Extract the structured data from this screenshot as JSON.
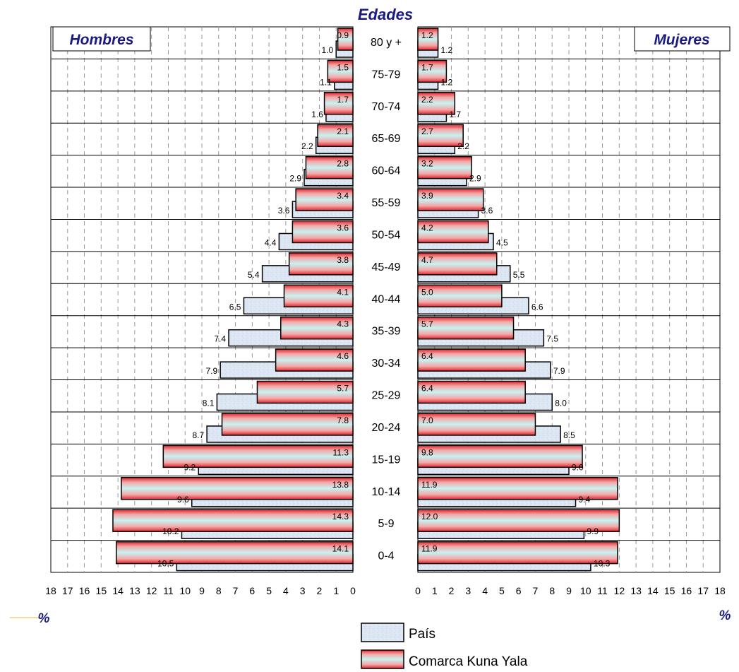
{
  "chart_data": {
    "type": "bar",
    "subtype": "population-pyramid",
    "title": "Edades",
    "left_label": "Hombres",
    "right_label": "Mujeres",
    "xlabel_left": "%",
    "xlabel_right": "%",
    "xlim": [
      0,
      18
    ],
    "x_ticks_left": [
      "18",
      "17",
      "16",
      "15",
      "14",
      "13",
      "12",
      "11",
      "10",
      "9",
      "8",
      "7",
      "6",
      "5",
      "4",
      "3",
      "2",
      "1",
      "0"
    ],
    "x_ticks_right": [
      "0",
      "1",
      "2",
      "3",
      "4",
      "5",
      "6",
      "7",
      "8",
      "9",
      "10",
      "11",
      "12",
      "13",
      "14",
      "15",
      "16",
      "17",
      "18"
    ],
    "categories": [
      "80 y +",
      "75-79",
      "70-74",
      "65-69",
      "60-64",
      "55-59",
      "50-54",
      "45-49",
      "40-44",
      "35-39",
      "30-34",
      "25-29",
      "20-24",
      "15-19",
      "10-14",
      "5-9",
      "0-4"
    ],
    "series": [
      {
        "name": "País",
        "color": "#dce6f4",
        "hombres": [
          1.0,
          1.1,
          1.6,
          2.2,
          2.9,
          3.6,
          4.4,
          5.4,
          6.5,
          7.4,
          7.9,
          8.1,
          8.7,
          9.2,
          9.6,
          10.2,
          10.5
        ],
        "mujeres": [
          1.2,
          1.2,
          1.7,
          2.2,
          2.9,
          3.6,
          4.5,
          5.5,
          6.6,
          7.5,
          7.9,
          8.0,
          8.5,
          9.0,
          9.4,
          9.9,
          10.3
        ],
        "hombres_labels": [
          "1.0",
          "1.1",
          "1.6",
          "2.2",
          "2.9",
          "3.6",
          "4.4",
          "5.4",
          "6.5",
          "7.4",
          "7.9",
          "8.1",
          "8.7",
          "9.2",
          "9.6",
          "10.2",
          "10.5"
        ],
        "mujeres_labels": [
          "1.2",
          "1.2",
          "1.7",
          "2.2",
          "2.9",
          "3.6",
          "4.5",
          "5.5",
          "6.6",
          "7.5",
          "7.9",
          "8.0",
          "8.5",
          "9.0",
          "9.4",
          "9.9",
          "10.3"
        ]
      },
      {
        "name": "Comarca Kuna Yala",
        "color": "#e83a3a",
        "hombres": [
          0.9,
          1.5,
          1.7,
          2.1,
          2.8,
          3.4,
          3.6,
          3.8,
          4.1,
          4.3,
          4.6,
          5.7,
          7.8,
          11.3,
          13.8,
          14.3,
          14.1
        ],
        "mujeres": [
          1.2,
          1.7,
          2.2,
          2.7,
          3.2,
          3.9,
          4.2,
          4.7,
          5.0,
          5.7,
          6.4,
          6.4,
          7.0,
          9.8,
          11.9,
          12.0,
          11.9
        ],
        "hombres_labels": [
          "0.9",
          "1.5",
          "1.7",
          "2.1",
          "2.8",
          "3.4",
          "3.6",
          "3.8",
          "4.1",
          "4.3",
          "4.6",
          "5.7",
          "7.8",
          "11.3",
          "13.8",
          "14.3",
          "14.1"
        ],
        "mujeres_labels": [
          "1.2",
          "1.7",
          "2.2",
          "2.7",
          "3.2",
          "3.9",
          "4.2",
          "4.7",
          "5.0",
          "5.7",
          "6.4",
          "6.4",
          "7.0",
          "9.8",
          "11.9",
          "12.0",
          "11.9"
        ]
      }
    ],
    "grid": true,
    "legend_position": "bottom-center"
  }
}
